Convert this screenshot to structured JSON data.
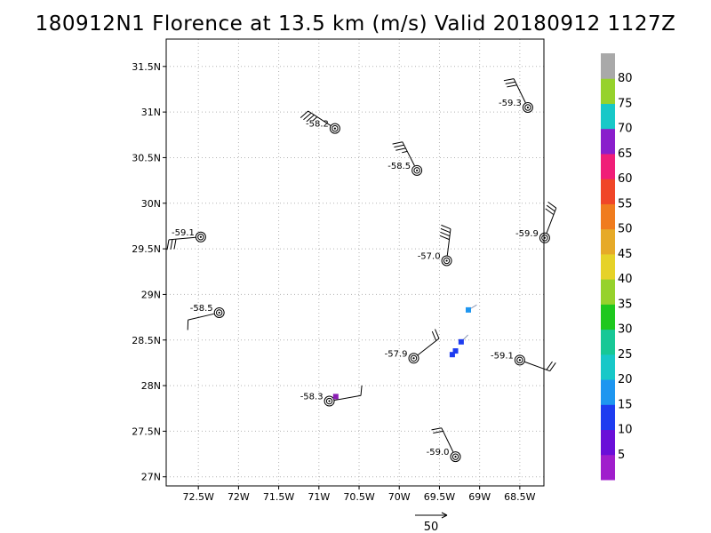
{
  "title": "180912N1 Florence at 13.5 km (m/s) Valid 20180912 1127Z",
  "map": {
    "lon_range": [
      -72.9,
      -68.2
    ],
    "lat_range": [
      26.9,
      31.8
    ],
    "lat_ticks": [
      {
        "value": 31.5,
        "label": "31.5N"
      },
      {
        "value": 31.0,
        "label": "31N"
      },
      {
        "value": 30.5,
        "label": "30.5N"
      },
      {
        "value": 30.0,
        "label": "30N"
      },
      {
        "value": 29.5,
        "label": "29.5N"
      },
      {
        "value": 29.0,
        "label": "29N"
      },
      {
        "value": 28.5,
        "label": "28.5N"
      },
      {
        "value": 28.0,
        "label": "28N"
      },
      {
        "value": 27.5,
        "label": "27.5N"
      },
      {
        "value": 27.0,
        "label": "27N"
      }
    ],
    "lon_ticks": [
      {
        "value": -72.5,
        "label": "72.5W"
      },
      {
        "value": -72.0,
        "label": "72W"
      },
      {
        "value": -71.5,
        "label": "71.5W"
      },
      {
        "value": -71.0,
        "label": "71W"
      },
      {
        "value": -70.5,
        "label": "70.5W"
      },
      {
        "value": -70.0,
        "label": "70W"
      },
      {
        "value": -69.5,
        "label": "69.5W"
      },
      {
        "value": -69.0,
        "label": "69W"
      },
      {
        "value": -68.5,
        "label": "68.5W"
      }
    ],
    "grid": true,
    "stations": [
      {
        "lon": -70.8,
        "lat": 30.82,
        "label": "-58.2",
        "wind_dir": 303,
        "barbs": 3.5
      },
      {
        "lon": -69.78,
        "lat": 30.36,
        "label": "-58.5",
        "wind_dir": 333,
        "barbs": 3.5
      },
      {
        "lon": -68.4,
        "lat": 31.05,
        "label": "-59.3",
        "wind_dir": 334,
        "barbs": 3
      },
      {
        "lon": -72.47,
        "lat": 29.63,
        "label": "-59.1",
        "wind_dir": 265,
        "barbs": 3
      },
      {
        "lon": -68.19,
        "lat": 29.62,
        "label": "-59.9",
        "wind_dir": 21,
        "barbs": 3
      },
      {
        "lon": -69.41,
        "lat": 29.37,
        "label": "-57.0",
        "wind_dir": 7,
        "barbs": 4
      },
      {
        "lon": -72.24,
        "lat": 28.8,
        "label": "-58.5",
        "wind_dir": 257,
        "barbs": 1
      },
      {
        "lon": -69.82,
        "lat": 28.3,
        "label": "-57.9",
        "wind_dir": 52,
        "barbs": 2
      },
      {
        "lon": -68.5,
        "lat": 28.28,
        "label": "-59.1",
        "wind_dir": 110,
        "barbs": 2
      },
      {
        "lon": -70.87,
        "lat": 27.83,
        "label": "-58.3",
        "wind_dir": 80,
        "barbs": 1
      },
      {
        "lon": -69.3,
        "lat": 27.22,
        "label": "-59.0",
        "wind_dir": 334,
        "barbs": 2
      }
    ],
    "obs": [
      {
        "lon": -69.14,
        "lat": 28.83,
        "color": "#1e96f0",
        "u": 1.0,
        "v": 0.6
      },
      {
        "lon": -69.23,
        "lat": 28.48,
        "color": "#1e3cf0",
        "u": 1.0,
        "v": 1.0
      },
      {
        "lon": -69.3,
        "lat": 28.38,
        "color": "#1e3cf0",
        "u": 0,
        "v": 0
      },
      {
        "lon": -69.34,
        "lat": 28.34,
        "color": "#1e3cf0",
        "u": 0,
        "v": 0
      },
      {
        "lon": -70.79,
        "lat": 27.88,
        "color": "#8a1eb4",
        "u": 0,
        "v": 0
      }
    ]
  },
  "legend": {
    "colors": [
      "#a01ecc",
      "#6a0fd8",
      "#1e3cf0",
      "#1e96f0",
      "#18c8c8",
      "#18c896",
      "#1ec81e",
      "#96d22c",
      "#e6d228",
      "#e6aa28",
      "#f07c1e",
      "#f04628",
      "#f01e78",
      "#8a1ecc",
      "#18c8c8",
      "#96d22c",
      "#a9a9a9"
    ],
    "labels": [
      "5",
      "10",
      "15",
      "20",
      "25",
      "30",
      "35",
      "40",
      "45",
      "50",
      "55",
      "60",
      "65",
      "70",
      "75",
      "80"
    ]
  },
  "reference_arrow": {
    "label": "50"
  }
}
